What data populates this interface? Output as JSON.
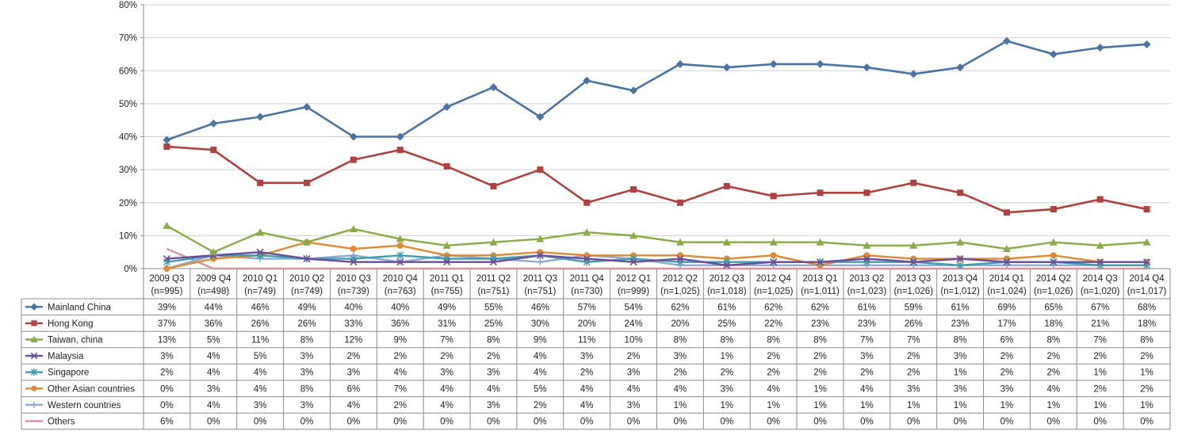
{
  "chart_data": {
    "type": "line",
    "ylim": [
      0,
      80
    ],
    "yticks": [
      0,
      10,
      20,
      30,
      40,
      50,
      60,
      70,
      80
    ],
    "ytick_labels": [
      "0%",
      "10%",
      "20%",
      "30%",
      "40%",
      "50%",
      "60%",
      "70%",
      "80%"
    ],
    "grid": true,
    "legend": "data-table-below",
    "categories": [
      {
        "period": "2009 Q3",
        "n": "(n=995)"
      },
      {
        "period": "2009 Q4",
        "n": "(n=498)"
      },
      {
        "period": "2010 Q1",
        "n": "(n=749)"
      },
      {
        "period": "2010 Q2",
        "n": "(n=749)"
      },
      {
        "period": "2010 Q3",
        "n": "(n=739)"
      },
      {
        "period": "2010 Q4",
        "n": "(n=763)"
      },
      {
        "period": "2011 Q1",
        "n": "(n=755)"
      },
      {
        "period": "2011 Q2",
        "n": "(n=751)"
      },
      {
        "period": "2011 Q3",
        "n": "(n=751)"
      },
      {
        "period": "2011 Q4",
        "n": "(n=730)"
      },
      {
        "period": "2012 Q1",
        "n": "(n=999)"
      },
      {
        "period": "2012 Q2",
        "n": "(n=1,025)"
      },
      {
        "period": "2012 Q3",
        "n": "(n=1,018)"
      },
      {
        "period": "2012 Q4",
        "n": "(n=1,025)"
      },
      {
        "period": "2013 Q1",
        "n": "(n=1,011)"
      },
      {
        "period": "2013 Q2",
        "n": "(n=1,023)"
      },
      {
        "period": "2013 Q3",
        "n": "(n=1,026)"
      },
      {
        "period": "2013 Q4",
        "n": "(n=1,012)"
      },
      {
        "period": "2014 Q1",
        "n": "(n=1,024)"
      },
      {
        "period": "2014 Q2",
        "n": "(n=1,026)"
      },
      {
        "period": "2014 Q3",
        "n": "(n=1,020)"
      },
      {
        "period": "2014 Q4",
        "n": "(n=1,017)"
      }
    ],
    "series": [
      {
        "name": "Mainland China",
        "color": "#4a74a8",
        "marker": "diamond",
        "values": [
          39,
          44,
          46,
          49,
          40,
          40,
          49,
          55,
          46,
          57,
          54,
          62,
          61,
          62,
          62,
          61,
          59,
          61,
          69,
          65,
          67,
          68
        ]
      },
      {
        "name": "Hong Kong",
        "color": "#b0413e",
        "marker": "square",
        "values": [
          37,
          36,
          26,
          26,
          33,
          36,
          31,
          25,
          30,
          20,
          24,
          20,
          25,
          22,
          23,
          23,
          26,
          23,
          17,
          18,
          21,
          18
        ]
      },
      {
        "name": "Taiwan, china",
        "color": "#8aac46",
        "marker": "triangle",
        "values": [
          13,
          5,
          11,
          8,
          12,
          9,
          7,
          8,
          9,
          11,
          10,
          8,
          8,
          8,
          8,
          7,
          7,
          8,
          6,
          8,
          7,
          8
        ]
      },
      {
        "name": "Malaysia",
        "color": "#6b4c9a",
        "marker": "x",
        "values": [
          3,
          4,
          5,
          3,
          2,
          2,
          2,
          2,
          4,
          3,
          2,
          3,
          1,
          2,
          2,
          3,
          2,
          3,
          2,
          2,
          2,
          2
        ]
      },
      {
        "name": "Singapore",
        "color": "#3c9fab",
        "marker": "star",
        "values": [
          2,
          4,
          4,
          3,
          3,
          4,
          3,
          3,
          4,
          2,
          3,
          2,
          2,
          2,
          2,
          2,
          2,
          1,
          2,
          2,
          1,
          1
        ]
      },
      {
        "name": "Other Asian countries",
        "color": "#e28a32",
        "marker": "circle",
        "values": [
          0,
          3,
          4,
          8,
          6,
          7,
          4,
          4,
          5,
          4,
          4,
          4,
          3,
          4,
          1,
          4,
          3,
          3,
          3,
          4,
          2,
          2
        ]
      },
      {
        "name": "Western countries",
        "color": "#8eaad6",
        "marker": "plus",
        "values": [
          0,
          4,
          3,
          3,
          4,
          2,
          4,
          3,
          2,
          4,
          3,
          1,
          1,
          1,
          1,
          1,
          1,
          1,
          1,
          1,
          1,
          1
        ]
      },
      {
        "name": "Others",
        "color": "#d9969a",
        "marker": "none",
        "values": [
          6,
          0,
          0,
          0,
          0,
          0,
          0,
          0,
          0,
          0,
          0,
          0,
          0,
          0,
          0,
          0,
          0,
          0,
          0,
          0,
          0,
          0
        ]
      }
    ]
  }
}
